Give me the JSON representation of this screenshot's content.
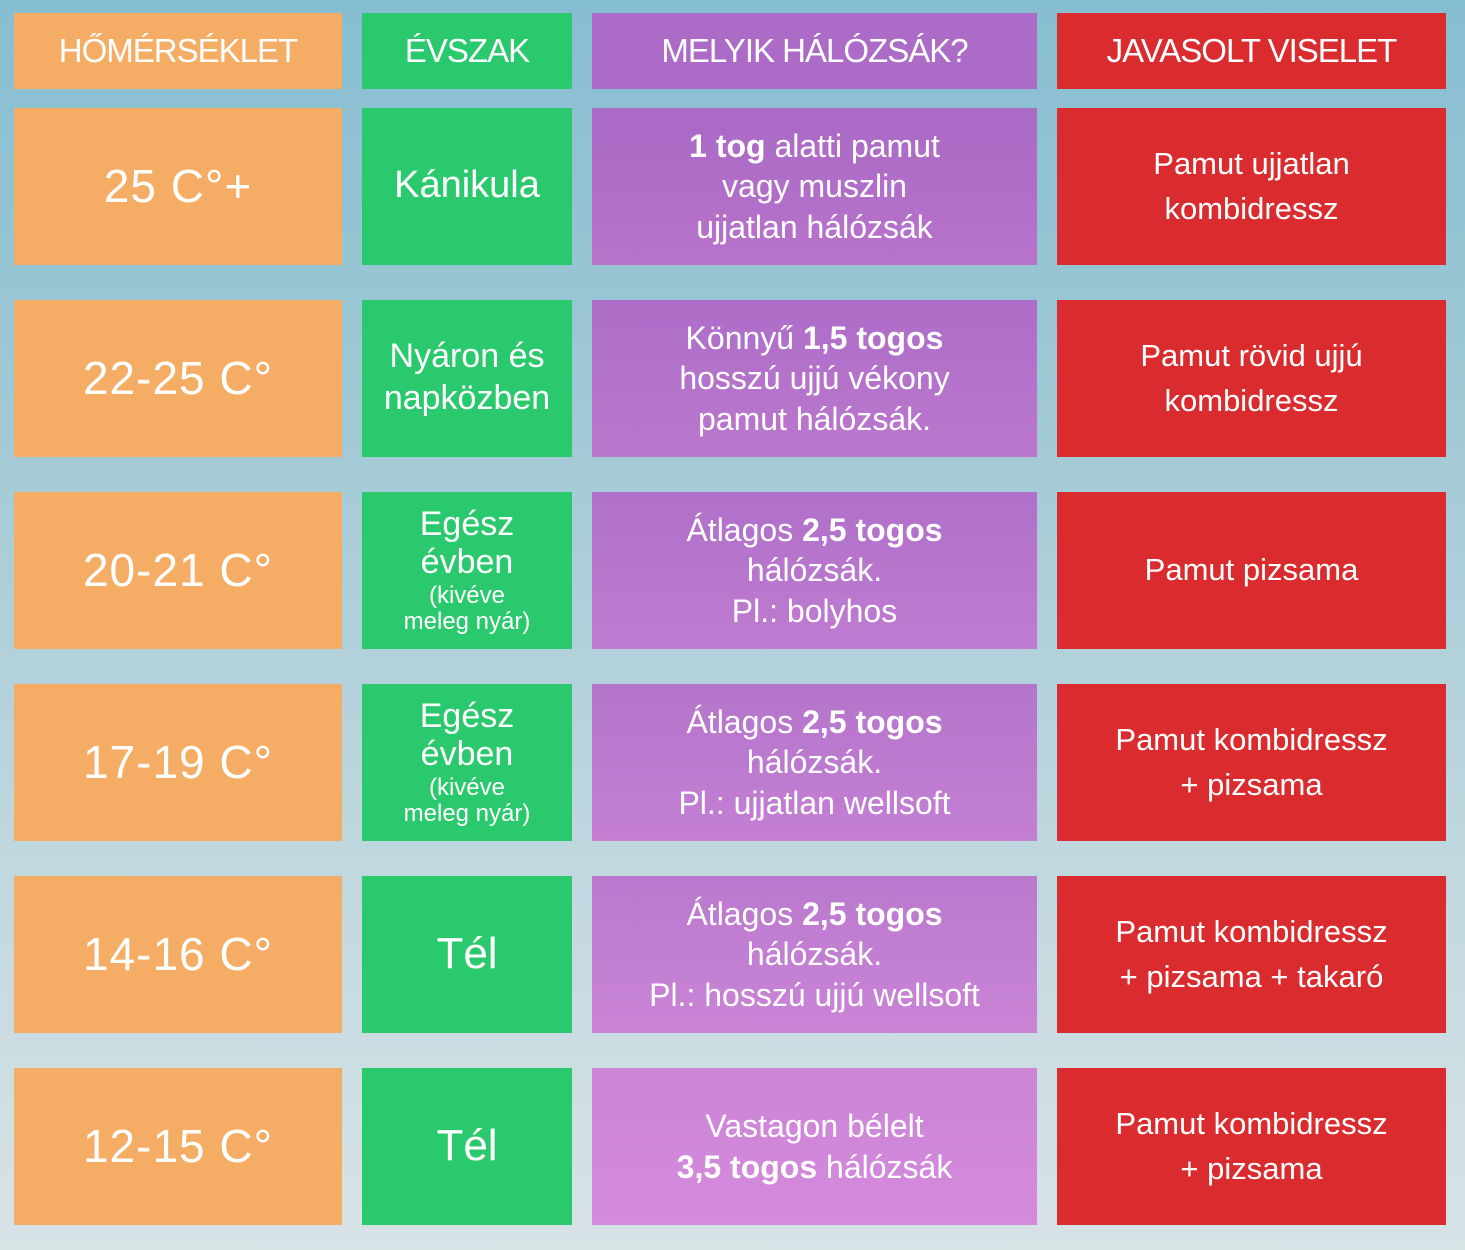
{
  "colors": {
    "column_temperature": "#f5ad65",
    "column_season": "#2bc96d",
    "column_bag_top": "#ab6cc7",
    "column_bag_bottom": "#cf86d8",
    "column_wear": "#da2b2e",
    "background_top": "#86bed1",
    "background_bottom": "#d8e3e6",
    "text": "#ffffff"
  },
  "table": {
    "headers": [
      {
        "label": "HŐMÉRSÉKLET"
      },
      {
        "label": "ÉVSZAK"
      },
      {
        "label": "MELYIK HÁLÓZSÁK?"
      },
      {
        "label": "JAVASOLT VISELET"
      }
    ],
    "rows": [
      {
        "temperature": "25 C°+",
        "season": "Kánikula",
        "season_note": "",
        "bag": {
          "pre": "",
          "bold": "1 tog",
          "post": " alatti pamut\nvagy muszlin\nujjatlan hálózsák"
        },
        "wear": "Pamut ujjatlan\nkombidressz"
      },
      {
        "temperature": "22-25 C°",
        "season": "Nyáron és\nnapközben",
        "season_note": "",
        "bag": {
          "pre": "Könnyű ",
          "bold": "1,5 togos",
          "post": "\nhosszú ujjú vékony\npamut hálózsák."
        },
        "wear": "Pamut rövid ujjú\nkombidressz"
      },
      {
        "temperature": "20-21 C°",
        "season": "Egész\névben",
        "season_note": "(kivéve\nmeleg nyár)",
        "bag": {
          "pre": "Átlagos ",
          "bold": "2,5 togos",
          "post": "\nhálózsák.\nPl.: bolyhos"
        },
        "wear": "Pamut pizsama"
      },
      {
        "temperature": "17-19 C°",
        "season": "Egész\névben",
        "season_note": "(kivéve\nmeleg nyár)",
        "bag": {
          "pre": "Átlagos ",
          "bold": "2,5 togos",
          "post": "\nhálózsák.\nPl.: ujjatlan wellsoft"
        },
        "wear": "Pamut kombidressz\n+ pizsama"
      },
      {
        "temperature": "14-16 C°",
        "season": "Tél",
        "season_note": "",
        "bag": {
          "pre": "Átlagos ",
          "bold": "2,5 togos",
          "post": "\nhálózsák.\nPl.: hosszú ujjú wellsoft"
        },
        "wear": "Pamut kombidressz\n+ pizsama + takaró"
      },
      {
        "temperature": "12-15 C°",
        "season": "Tél",
        "season_note": "",
        "bag": {
          "pre": "Vastagon bélelt\n",
          "bold": "3,5 togos",
          "post": " hálózsák"
        },
        "wear": "Pamut kombidressz\n+ pizsama"
      }
    ]
  },
  "chart_data": {
    "type": "table",
    "columns": [
      "HŐMÉRSÉKLET",
      "ÉVSZAK",
      "MELYIK HÁLÓZSÁK?",
      "JAVASOLT VISELET"
    ],
    "rows": [
      [
        "25 C°+",
        "Kánikula",
        "1 tog alatti pamut vagy muszlin ujjatlan hálózsák",
        "Pamut ujjatlan kombidressz"
      ],
      [
        "22-25 C°",
        "Nyáron és napközben",
        "Könnyű 1,5 togos hosszú ujjú vékony pamut hálózsák.",
        "Pamut rövid ujjú kombidressz"
      ],
      [
        "20-21 C°",
        "Egész évben (kivéve meleg nyár)",
        "Átlagos 2,5 togos hálózsák. Pl.: bolyhos",
        "Pamut pizsama"
      ],
      [
        "17-19 C°",
        "Egész évben (kivéve meleg nyár)",
        "Átlagos 2,5 togos hálózsák. Pl.: ujjatlan wellsoft",
        "Pamut kombidressz + pizsama"
      ],
      [
        "14-16 C°",
        "Tél",
        "Átlagos 2,5 togos hálózsák. Pl.: hosszú ujjú wellsoft",
        "Pamut kombidressz + pizsama + takaró"
      ],
      [
        "12-15 C°",
        "Tél",
        "Vastagon bélelt 3,5 togos hálózsák",
        "Pamut kombidressz + pizsama"
      ]
    ]
  }
}
